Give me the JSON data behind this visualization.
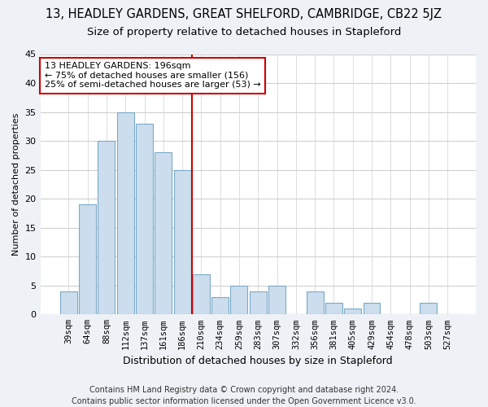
{
  "title": "13, HEADLEY GARDENS, GREAT SHELFORD, CAMBRIDGE, CB22 5JZ",
  "subtitle": "Size of property relative to detached houses in Stapleford",
  "xlabel": "Distribution of detached houses by size in Stapleford",
  "ylabel": "Number of detached properties",
  "categories": [
    "39sqm",
    "64sqm",
    "88sqm",
    "112sqm",
    "137sqm",
    "161sqm",
    "186sqm",
    "210sqm",
    "234sqm",
    "259sqm",
    "283sqm",
    "307sqm",
    "332sqm",
    "356sqm",
    "381sqm",
    "405sqm",
    "429sqm",
    "454sqm",
    "478sqm",
    "503sqm",
    "527sqm"
  ],
  "values": [
    4,
    19,
    30,
    35,
    33,
    28,
    25,
    7,
    3,
    5,
    4,
    5,
    0,
    4,
    2,
    1,
    2,
    0,
    0,
    2,
    0
  ],
  "bar_color": "#ccdded",
  "bar_edge_color": "#7aaac8",
  "property_line_x": 6.5,
  "annotation_text": "13 HEADLEY GARDENS: 196sqm\n← 75% of detached houses are smaller (156)\n25% of semi-detached houses are larger (53) →",
  "annotation_box_color": "#ffffff",
  "annotation_box_edge_color": "#cc0000",
  "vline_color": "#cc0000",
  "footer": "Contains HM Land Registry data © Crown copyright and database right 2024.\nContains public sector information licensed under the Open Government Licence v3.0.",
  "ylim": [
    0,
    45
  ],
  "bg_color": "#eef2f7",
  "plot_bg_color": "#ffffff",
  "grid_color": "#d0d0d0",
  "title_fontsize": 10.5,
  "subtitle_fontsize": 9.5,
  "footer_fontsize": 7,
  "annotation_fontsize": 8,
  "ylabel_fontsize": 8,
  "xlabel_fontsize": 9
}
